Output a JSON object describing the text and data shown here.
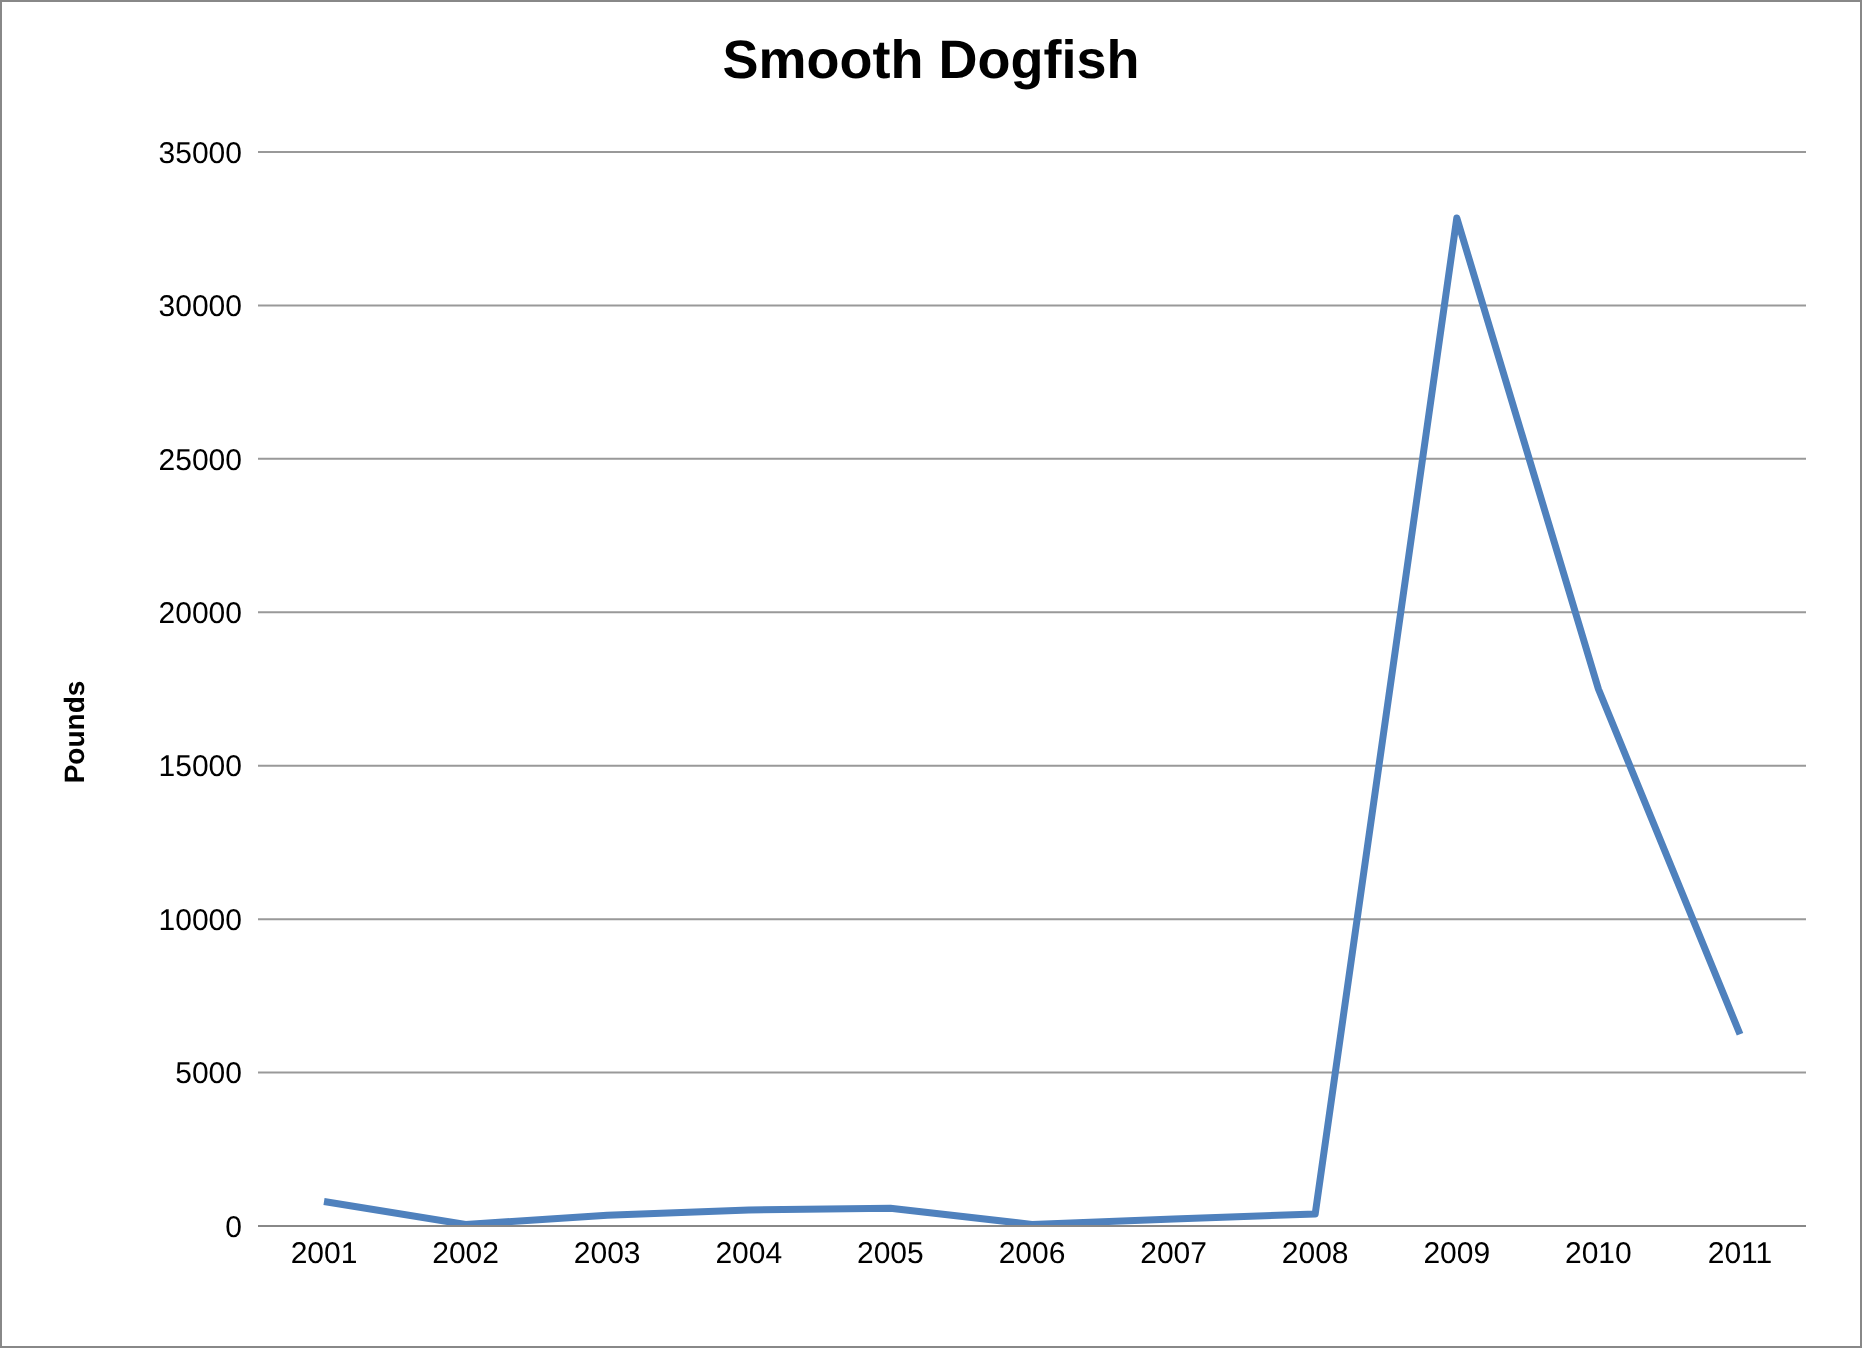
{
  "chart_data": {
    "type": "line",
    "title": "Smooth Dogfish",
    "ylabel": "Pounds",
    "categories": [
      "2001",
      "2002",
      "2003",
      "2004",
      "2005",
      "2006",
      "2007",
      "2008",
      "2009",
      "2010",
      "2011"
    ],
    "series": [
      {
        "color": "#4f81bd",
        "values": [
          800,
          50,
          350,
          520,
          580,
          50,
          230,
          390,
          32850,
          17500,
          6250
        ]
      }
    ],
    "ylim": [
      0,
      35000
    ],
    "yticks": [
      0,
      5000,
      10000,
      15000,
      20000,
      25000,
      30000,
      35000
    ],
    "grid": "y",
    "legend": false,
    "marker": "none"
  }
}
